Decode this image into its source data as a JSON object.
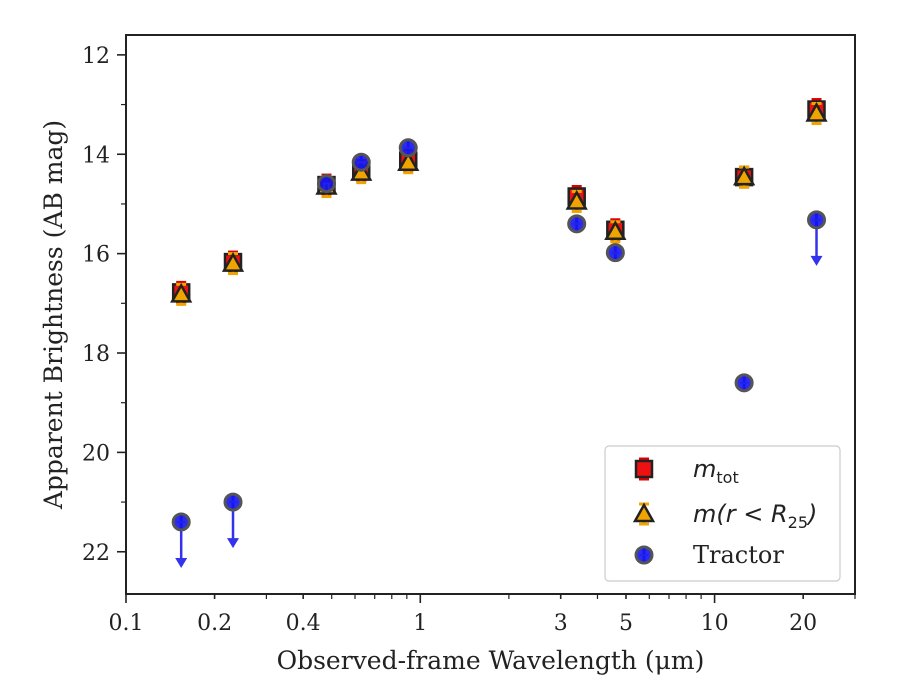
{
  "chart_data": {
    "type": "scatter",
    "xlabel": "Observed-frame Wavelength (μm)",
    "ylabel": "Apparent Brightness (AB mag)",
    "x_scale": "log",
    "xlim": [
      0.1,
      30
    ],
    "ylim": [
      22.85,
      11.6
    ],
    "y_inverted": true,
    "xticks": [
      {
        "value": 0.1,
        "label": "0.1"
      },
      {
        "value": 0.2,
        "label": "0.2"
      },
      {
        "value": 0.4,
        "label": "0.4"
      },
      {
        "value": 1,
        "label": "1"
      },
      {
        "value": 3,
        "label": "3"
      },
      {
        "value": 5,
        "label": "5"
      },
      {
        "value": 10,
        "label": "10"
      },
      {
        "value": 20,
        "label": "20"
      }
    ],
    "yticks": [
      {
        "value": 12,
        "label": "12"
      },
      {
        "value": 14,
        "label": "14"
      },
      {
        "value": 16,
        "label": "16"
      },
      {
        "value": 18,
        "label": "18"
      },
      {
        "value": 20,
        "label": "20"
      },
      {
        "value": 22,
        "label": "22"
      }
    ],
    "legend_position": "lower-right",
    "series": [
      {
        "name": "m_tot",
        "marker": "square",
        "color": "#ee1111",
        "edge": "#222222",
        "ecolor": "#dd0000",
        "x": [
          0.154,
          0.231,
          0.48,
          0.63,
          0.91,
          3.4,
          4.6,
          12.6,
          22.2
        ],
        "y": [
          16.78,
          16.17,
          14.62,
          14.33,
          14.13,
          14.85,
          15.52,
          14.46,
          13.1
        ]
      },
      {
        "name": "m(r < R25)",
        "marker": "triangle",
        "color": "#f0a400",
        "edge": "#222222",
        "ecolor": "#f0a400",
        "x": [
          0.154,
          0.231,
          0.48,
          0.63,
          0.91,
          3.4,
          4.6,
          12.6,
          22.2
        ],
        "y": [
          16.82,
          16.2,
          14.65,
          14.37,
          14.17,
          14.95,
          15.56,
          14.46,
          13.18
        ]
      },
      {
        "name": "Tractor",
        "marker": "circle",
        "color": "#1515ee",
        "edge": "#555555",
        "ecolor": "#2222ee",
        "x": [
          0.154,
          0.231,
          0.48,
          0.63,
          0.91,
          3.4,
          4.6,
          12.6,
          22.2
        ],
        "y": [
          21.4,
          21.0,
          14.59,
          14.16,
          13.87,
          15.4,
          15.98,
          18.6,
          15.32
        ],
        "upper_limit": [
          true,
          true,
          false,
          false,
          false,
          false,
          false,
          false,
          true
        ]
      }
    ],
    "legend": {
      "entries": [
        {
          "label_main": "m",
          "label_sub": "tot",
          "marker": "square"
        },
        {
          "label_main": "m(r < R",
          "label_sub": "25",
          "label_tail": ")",
          "marker": "triangle"
        },
        {
          "label_main": "Tractor",
          "marker": "circle"
        }
      ]
    }
  }
}
